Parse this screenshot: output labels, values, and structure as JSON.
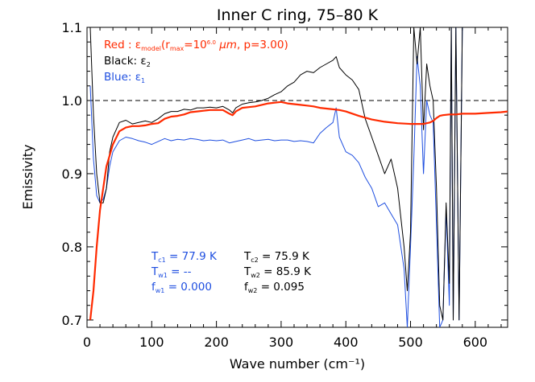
{
  "chart_data": {
    "type": "line",
    "title": "Inner C ring, 75–80 K",
    "xlabel": "Wave number (cm⁻¹)",
    "ylabel": "Emissivity",
    "xlim": [
      0,
      650
    ],
    "ylim": [
      0.69,
      1.1
    ],
    "xticks": [
      0,
      100,
      200,
      300,
      400,
      500,
      600
    ],
    "yticks": [
      0.7,
      0.8,
      0.9,
      1.0,
      1.1
    ],
    "xtick_labels": [
      "0",
      "100",
      "200",
      "300",
      "400",
      "500",
      "600"
    ],
    "ytick_labels": [
      "0.7",
      "0.8",
      "0.9",
      "1.0",
      "1.1"
    ],
    "reference_line": {
      "y": 1.0,
      "style": "dashed"
    },
    "legend": {
      "red": {
        "prefix": "Red : ",
        "eps": "ε",
        "eps_sub": "model",
        "open": "(r",
        "r_sub": "max",
        "eq": "=10",
        "r_sup": "6.0",
        "unit": " μm",
        "rest": ", p=3.00)"
      },
      "black": {
        "prefix": "Black: ",
        "eps": "ε",
        "sub": "2"
      },
      "blue": {
        "prefix": "Blue: ",
        "eps": "ε",
        "sub": "1"
      }
    },
    "colors": {
      "red": "#ff2a00",
      "black": "#000000",
      "blue": "#1f4fe0"
    },
    "annotations": {
      "blue": [
        {
          "T": "T",
          "sub": "c1",
          "value": " =   77.9 K"
        },
        {
          "T": "T",
          "sub": "w1",
          "value": " = --"
        },
        {
          "T": "f",
          "sub": "w1",
          "value": " = 0.000"
        }
      ],
      "black": [
        {
          "T": "T",
          "sub": "c2",
          "value": " =   75.9 K"
        },
        {
          "T": "T",
          "sub": "w2",
          "value": " =   85.9 K"
        },
        {
          "T": "f",
          "sub": "w2",
          "value": " = 0.095"
        }
      ]
    },
    "series": [
      {
        "color": "red",
        "x": [
          5,
          10,
          15,
          20,
          25,
          30,
          40,
          50,
          60,
          70,
          80,
          90,
          100,
          110,
          120,
          130,
          140,
          150,
          160,
          170,
          180,
          190,
          200,
          210,
          220,
          225,
          230,
          240,
          250,
          260,
          270,
          280,
          290,
          300,
          310,
          320,
          330,
          340,
          350,
          360,
          370,
          380,
          390,
          400,
          420,
          440,
          460,
          480,
          500,
          510,
          520,
          525,
          530,
          535,
          540,
          545,
          550,
          560,
          570,
          580,
          600,
          620,
          640,
          650
        ],
        "y": [
          0.7,
          0.74,
          0.8,
          0.85,
          0.88,
          0.91,
          0.94,
          0.958,
          0.963,
          0.965,
          0.965,
          0.966,
          0.968,
          0.969,
          0.975,
          0.978,
          0.979,
          0.981,
          0.984,
          0.985,
          0.986,
          0.987,
          0.987,
          0.987,
          0.982,
          0.98,
          0.985,
          0.99,
          0.991,
          0.992,
          0.994,
          0.996,
          0.997,
          0.998,
          0.996,
          0.995,
          0.994,
          0.993,
          0.992,
          0.99,
          0.989,
          0.988,
          0.987,
          0.985,
          0.979,
          0.974,
          0.971,
          0.969,
          0.968,
          0.968,
          0.968,
          0.969,
          0.97,
          0.972,
          0.976,
          0.979,
          0.98,
          0.981,
          0.981,
          0.982,
          0.982,
          0.983,
          0.984,
          0.985
        ]
      },
      {
        "color": "black",
        "x": [
          5,
          10,
          15,
          20,
          25,
          30,
          35,
          40,
          50,
          60,
          70,
          80,
          90,
          100,
          110,
          120,
          130,
          140,
          150,
          160,
          170,
          180,
          190,
          200,
          210,
          220,
          225,
          230,
          240,
          250,
          260,
          270,
          280,
          290,
          300,
          310,
          320,
          330,
          340,
          350,
          360,
          370,
          380,
          385,
          390,
          400,
          410,
          420,
          430,
          440,
          450,
          460,
          470,
          480,
          490,
          495,
          500,
          505,
          510,
          515,
          520,
          525,
          530,
          535,
          540,
          545,
          550,
          555,
          560,
          563,
          566,
          570,
          575,
          580,
          600,
          620,
          640,
          650
        ],
        "y": [
          1.1,
          0.98,
          0.9,
          0.86,
          0.86,
          0.88,
          0.93,
          0.95,
          0.97,
          0.973,
          0.968,
          0.97,
          0.972,
          0.97,
          0.975,
          0.982,
          0.985,
          0.985,
          0.988,
          0.987,
          0.99,
          0.99,
          0.991,
          0.99,
          0.992,
          0.987,
          0.983,
          0.99,
          0.995,
          0.997,
          0.998,
          1.0,
          1.003,
          1.008,
          1.012,
          1.02,
          1.025,
          1.035,
          1.04,
          1.038,
          1.045,
          1.05,
          1.055,
          1.06,
          1.045,
          1.035,
          1.028,
          1.015,
          0.975,
          0.95,
          0.925,
          0.9,
          0.92,
          0.88,
          0.8,
          0.74,
          0.82,
          1.1,
          1.05,
          1.1,
          0.96,
          1.05,
          1.02,
          1.0,
          0.88,
          0.72,
          0.7,
          0.86,
          0.75,
          1.1,
          0.7,
          1.1,
          0.7,
          1.1,
          1.1,
          1.1,
          1.1,
          1.1
        ]
      },
      {
        "color": "blue",
        "x": [
          5,
          10,
          15,
          20,
          25,
          30,
          35,
          40,
          50,
          60,
          70,
          80,
          90,
          100,
          110,
          120,
          130,
          140,
          150,
          160,
          170,
          180,
          190,
          200,
          210,
          220,
          230,
          240,
          250,
          260,
          270,
          280,
          290,
          300,
          310,
          320,
          330,
          340,
          350,
          360,
          370,
          380,
          385,
          390,
          400,
          410,
          420,
          430,
          440,
          450,
          460,
          470,
          480,
          490,
          495,
          500,
          505,
          510,
          515,
          520,
          525,
          530,
          535,
          540,
          545,
          550,
          555,
          560,
          563,
          566,
          570,
          575,
          580,
          600,
          620,
          640,
          650
        ],
        "y": [
          1.02,
          0.92,
          0.87,
          0.86,
          0.865,
          0.88,
          0.91,
          0.93,
          0.945,
          0.95,
          0.948,
          0.945,
          0.943,
          0.94,
          0.944,
          0.948,
          0.945,
          0.947,
          0.946,
          0.948,
          0.947,
          0.945,
          0.946,
          0.945,
          0.946,
          0.942,
          0.944,
          0.946,
          0.948,
          0.945,
          0.946,
          0.947,
          0.945,
          0.946,
          0.946,
          0.944,
          0.945,
          0.944,
          0.942,
          0.955,
          0.963,
          0.97,
          0.99,
          0.95,
          0.93,
          0.925,
          0.915,
          0.895,
          0.88,
          0.855,
          0.86,
          0.845,
          0.83,
          0.77,
          0.69,
          0.8,
          0.92,
          1.06,
          1.02,
          0.9,
          1.0,
          0.98,
          0.97,
          0.83,
          0.69,
          0.7,
          0.85,
          0.72,
          1.1,
          0.7,
          1.1,
          0.7,
          1.1,
          1.1,
          1.1,
          1.1,
          1.1
        ]
      }
    ]
  }
}
